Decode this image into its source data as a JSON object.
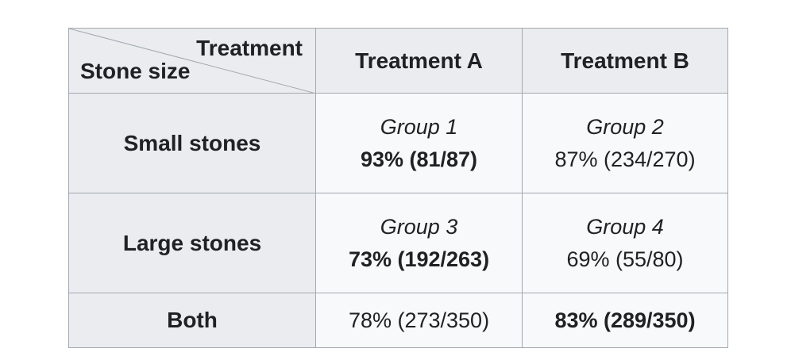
{
  "table": {
    "corner": {
      "top": "Treatment",
      "bottom": "Stone size"
    },
    "columns": [
      "Treatment A",
      "Treatment B"
    ],
    "rows": [
      {
        "label": "Small stones",
        "cells": [
          {
            "group": "Group 1",
            "result": "93% (81/87)",
            "bold": true
          },
          {
            "group": "Group 2",
            "result": "87% (234/270)",
            "bold": false
          }
        ]
      },
      {
        "label": "Large stones",
        "cells": [
          {
            "group": "Group 3",
            "result": "73% (192/263)",
            "bold": true
          },
          {
            "group": "Group 4",
            "result": "69% (55/80)",
            "bold": false
          }
        ]
      },
      {
        "label": "Both",
        "cells": [
          {
            "result": "78% (273/350)",
            "bold": false
          },
          {
            "result": "83% (289/350)",
            "bold": true
          }
        ]
      }
    ]
  }
}
